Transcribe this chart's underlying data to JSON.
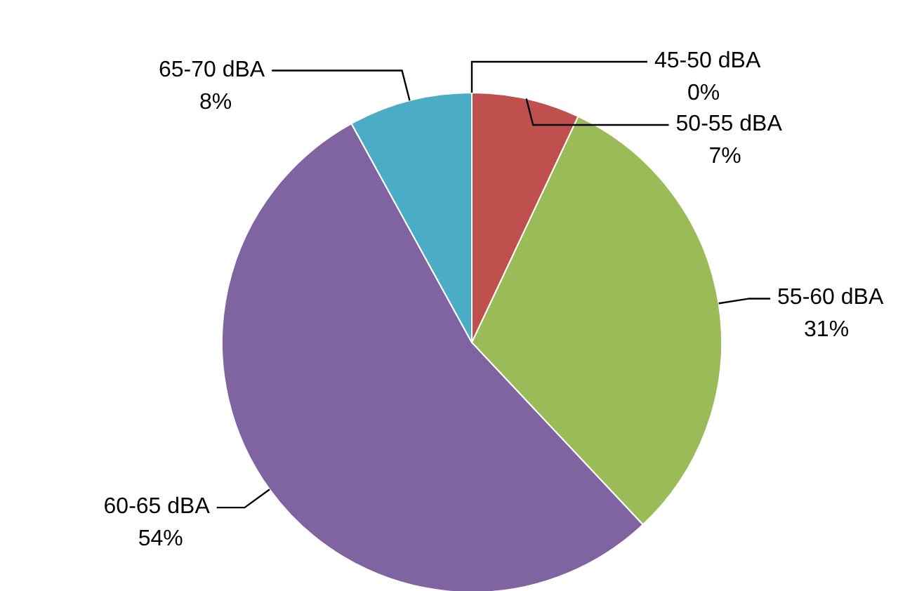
{
  "chart_data": {
    "type": "pie",
    "categories": [
      "45-50 dBA",
      "50-55 dBA",
      "55-60 dBA",
      "60-65 dBA",
      "65-70 dBA"
    ],
    "values": [
      0,
      7,
      31,
      54,
      8
    ],
    "colors": [
      "#4f81bd",
      "#c0504d",
      "#9bbb59",
      "#8064a2",
      "#4bacc6"
    ],
    "value_labels": [
      "0%",
      "7%",
      "31%",
      "54%",
      "8%"
    ]
  }
}
